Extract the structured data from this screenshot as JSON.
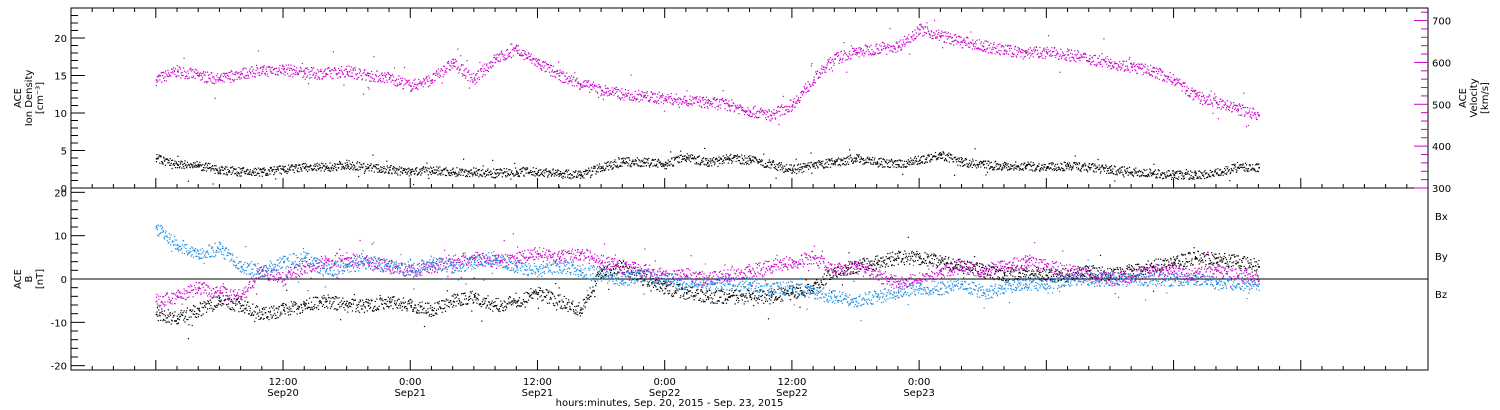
{
  "chart_data": [
    {
      "type": "scatter",
      "panel": "top",
      "ylabel_left": [
        "ACE",
        "Ion Density",
        "[cm⁻³]"
      ],
      "ylabel_right": [
        "ACE",
        "Velocity",
        "[km/s]"
      ],
      "y_left": {
        "lim": [
          0,
          24
        ],
        "ticks": [
          0,
          5,
          10,
          15,
          20
        ],
        "labels": [
          "0",
          "5",
          "10",
          "15",
          "20"
        ]
      },
      "y_right": {
        "lim": [
          300,
          730
        ],
        "ticks": [
          300,
          400,
          500,
          600,
          700
        ],
        "labels": [
          "300",
          "400",
          "500",
          "600",
          "700"
        ]
      },
      "series": [
        {
          "name": "Ion Density",
          "color": "#000000",
          "axis": "left",
          "x": [
            0,
            2,
            4,
            6,
            8,
            10,
            12,
            14,
            16,
            18,
            20,
            22,
            24,
            26,
            28,
            30,
            32,
            34,
            36,
            38,
            40,
            42,
            44,
            46,
            48,
            50,
            52,
            54,
            56,
            58,
            60,
            62,
            64,
            66,
            68,
            70,
            72,
            74,
            76,
            78,
            80,
            82,
            84,
            86,
            88,
            90,
            92,
            94,
            96,
            98,
            100,
            102,
            104
          ],
          "y": [
            4,
            3.2,
            3,
            2.5,
            2.2,
            2.2,
            2.5,
            2.8,
            2.8,
            3.2,
            2.8,
            2.5,
            2.2,
            2.4,
            2.2,
            2.2,
            2.0,
            2.2,
            2.2,
            2.0,
            1.8,
            2.8,
            3.5,
            3.5,
            3.2,
            4.2,
            3.5,
            4.0,
            3.8,
            3.2,
            2.5,
            3.0,
            3.5,
            4.0,
            3.5,
            3.2,
            3.8,
            4.5,
            3.5,
            3.2,
            3.0,
            3.0,
            2.8,
            3.0,
            2.8,
            2.5,
            2.2,
            2.0,
            1.8,
            1.8,
            2.0,
            2.8,
            2.8
          ]
        },
        {
          "name": "Velocity",
          "color": "#cc00cc",
          "axis": "right",
          "x": [
            0,
            2,
            4,
            6,
            8,
            10,
            12,
            14,
            16,
            18,
            20,
            22,
            24,
            26,
            28,
            30,
            32,
            34,
            36,
            38,
            40,
            42,
            44,
            46,
            48,
            50,
            52,
            54,
            56,
            58,
            60,
            62,
            64,
            66,
            68,
            70,
            72,
            74,
            76,
            78,
            80,
            82,
            84,
            86,
            88,
            90,
            92,
            94,
            96,
            98,
            100,
            102,
            104
          ],
          "y": [
            560,
            580,
            570,
            560,
            575,
            580,
            585,
            575,
            575,
            580,
            570,
            565,
            545,
            560,
            600,
            560,
            610,
            630,
            600,
            570,
            550,
            535,
            525,
            520,
            515,
            510,
            505,
            500,
            485,
            475,
            500,
            560,
            610,
            625,
            635,
            640,
            680,
            665,
            650,
            640,
            630,
            625,
            625,
            620,
            610,
            600,
            590,
            580,
            560,
            520,
            505,
            490,
            475
          ]
        }
      ]
    },
    {
      "type": "scatter",
      "panel": "bottom",
      "ylabel_left": [
        "ACE",
        "B",
        "[nT]"
      ],
      "y_left": {
        "lim": [
          -21,
          21
        ],
        "ticks": [
          -20,
          -10,
          0,
          10,
          20
        ],
        "labels": [
          "-20",
          "-10",
          "0",
          "10",
          "20"
        ]
      },
      "legend": {
        "placement": "right",
        "entries": [
          "Bx",
          "By",
          "Bz"
        ]
      },
      "series": [
        {
          "name": "Bx",
          "color": "#000000",
          "x": [
            0,
            2,
            4,
            6,
            8,
            10,
            12,
            14,
            16,
            18,
            20,
            22,
            24,
            26,
            28,
            30,
            32,
            34,
            36,
            38,
            40,
            42,
            44,
            46,
            48,
            50,
            52,
            54,
            56,
            58,
            60,
            62,
            64,
            66,
            68,
            70,
            72,
            74,
            76,
            78,
            80,
            82,
            84,
            86,
            88,
            90,
            92,
            94,
            96,
            98,
            100,
            102,
            104
          ],
          "y": [
            -8,
            -9,
            -7,
            -5,
            -6,
            -8,
            -7,
            -6,
            -5,
            -6,
            -6,
            -5,
            -6,
            -7,
            -5,
            -4,
            -6,
            -5,
            -3,
            -5,
            -7,
            2,
            3,
            0,
            -2,
            -3,
            -4,
            -4,
            -4,
            -4,
            -3,
            -2,
            2,
            3,
            4,
            5,
            5,
            4,
            3,
            2,
            1,
            2,
            1,
            1,
            2,
            1,
            2,
            3,
            4,
            5,
            5,
            4,
            3
          ]
        },
        {
          "name": "By",
          "color": "#1a8ce0",
          "x": [
            0,
            2,
            4,
            6,
            8,
            10,
            12,
            14,
            16,
            18,
            20,
            22,
            24,
            26,
            28,
            30,
            32,
            34,
            36,
            38,
            40,
            42,
            44,
            46,
            48,
            50,
            52,
            54,
            56,
            58,
            60,
            62,
            64,
            66,
            68,
            70,
            72,
            74,
            76,
            78,
            80,
            82,
            84,
            86,
            88,
            90,
            92,
            94,
            96,
            98,
            100,
            102,
            104
          ],
          "y": [
            12,
            8,
            6,
            7,
            3,
            2,
            4,
            5,
            2,
            3,
            4,
            3,
            2,
            4,
            3,
            4,
            5,
            3,
            2,
            3,
            2,
            1,
            0,
            1,
            0,
            -1,
            -1,
            -1,
            -1,
            -2,
            -2,
            -3,
            -4,
            -5,
            -4,
            -3,
            -2,
            -2,
            -1,
            -3,
            -2,
            -1,
            -1,
            0,
            0,
            0,
            0,
            0,
            0,
            0,
            -1,
            -1,
            -1
          ]
        },
        {
          "name": "Bz",
          "color": "#cc00cc",
          "x": [
            0,
            2,
            4,
            6,
            8,
            10,
            12,
            14,
            16,
            18,
            20,
            22,
            24,
            26,
            28,
            30,
            32,
            34,
            36,
            38,
            40,
            42,
            44,
            46,
            48,
            50,
            52,
            54,
            56,
            58,
            60,
            62,
            64,
            66,
            68,
            70,
            72,
            74,
            76,
            78,
            80,
            82,
            84,
            86,
            88,
            90,
            92,
            94,
            96,
            98,
            100,
            102,
            104
          ],
          "y": [
            -5,
            -4,
            -2,
            -3,
            -4,
            2,
            0,
            3,
            4,
            5,
            4,
            3,
            2,
            3,
            4,
            5,
            4,
            5,
            6,
            5,
            6,
            4,
            3,
            2,
            1,
            1,
            0,
            1,
            2,
            3,
            4,
            5,
            2,
            3,
            1,
            -1,
            0,
            2,
            3,
            2,
            3,
            4,
            3,
            2,
            1,
            0,
            1,
            2,
            2,
            1,
            2,
            1,
            0
          ]
        }
      ]
    }
  ],
  "x_axis": {
    "unit": "hours",
    "lim": [
      -8,
      120
    ],
    "ticks": [
      {
        "x": 12,
        "time": "12:00",
        "date": "Sep20"
      },
      {
        "x": 24,
        "time": "0:00",
        "date": "Sep21"
      },
      {
        "x": 36,
        "time": "12:00",
        "date": "Sep21"
      },
      {
        "x": 48,
        "time": "0:00",
        "date": "Sep22"
      },
      {
        "x": 60,
        "time": "12:00",
        "date": "Sep22"
      },
      {
        "x": 72,
        "time": "0:00",
        "date": "Sep23"
      }
    ],
    "label": "hours:minutes, Sep. 20, 2015 - Sep. 23, 2015"
  }
}
